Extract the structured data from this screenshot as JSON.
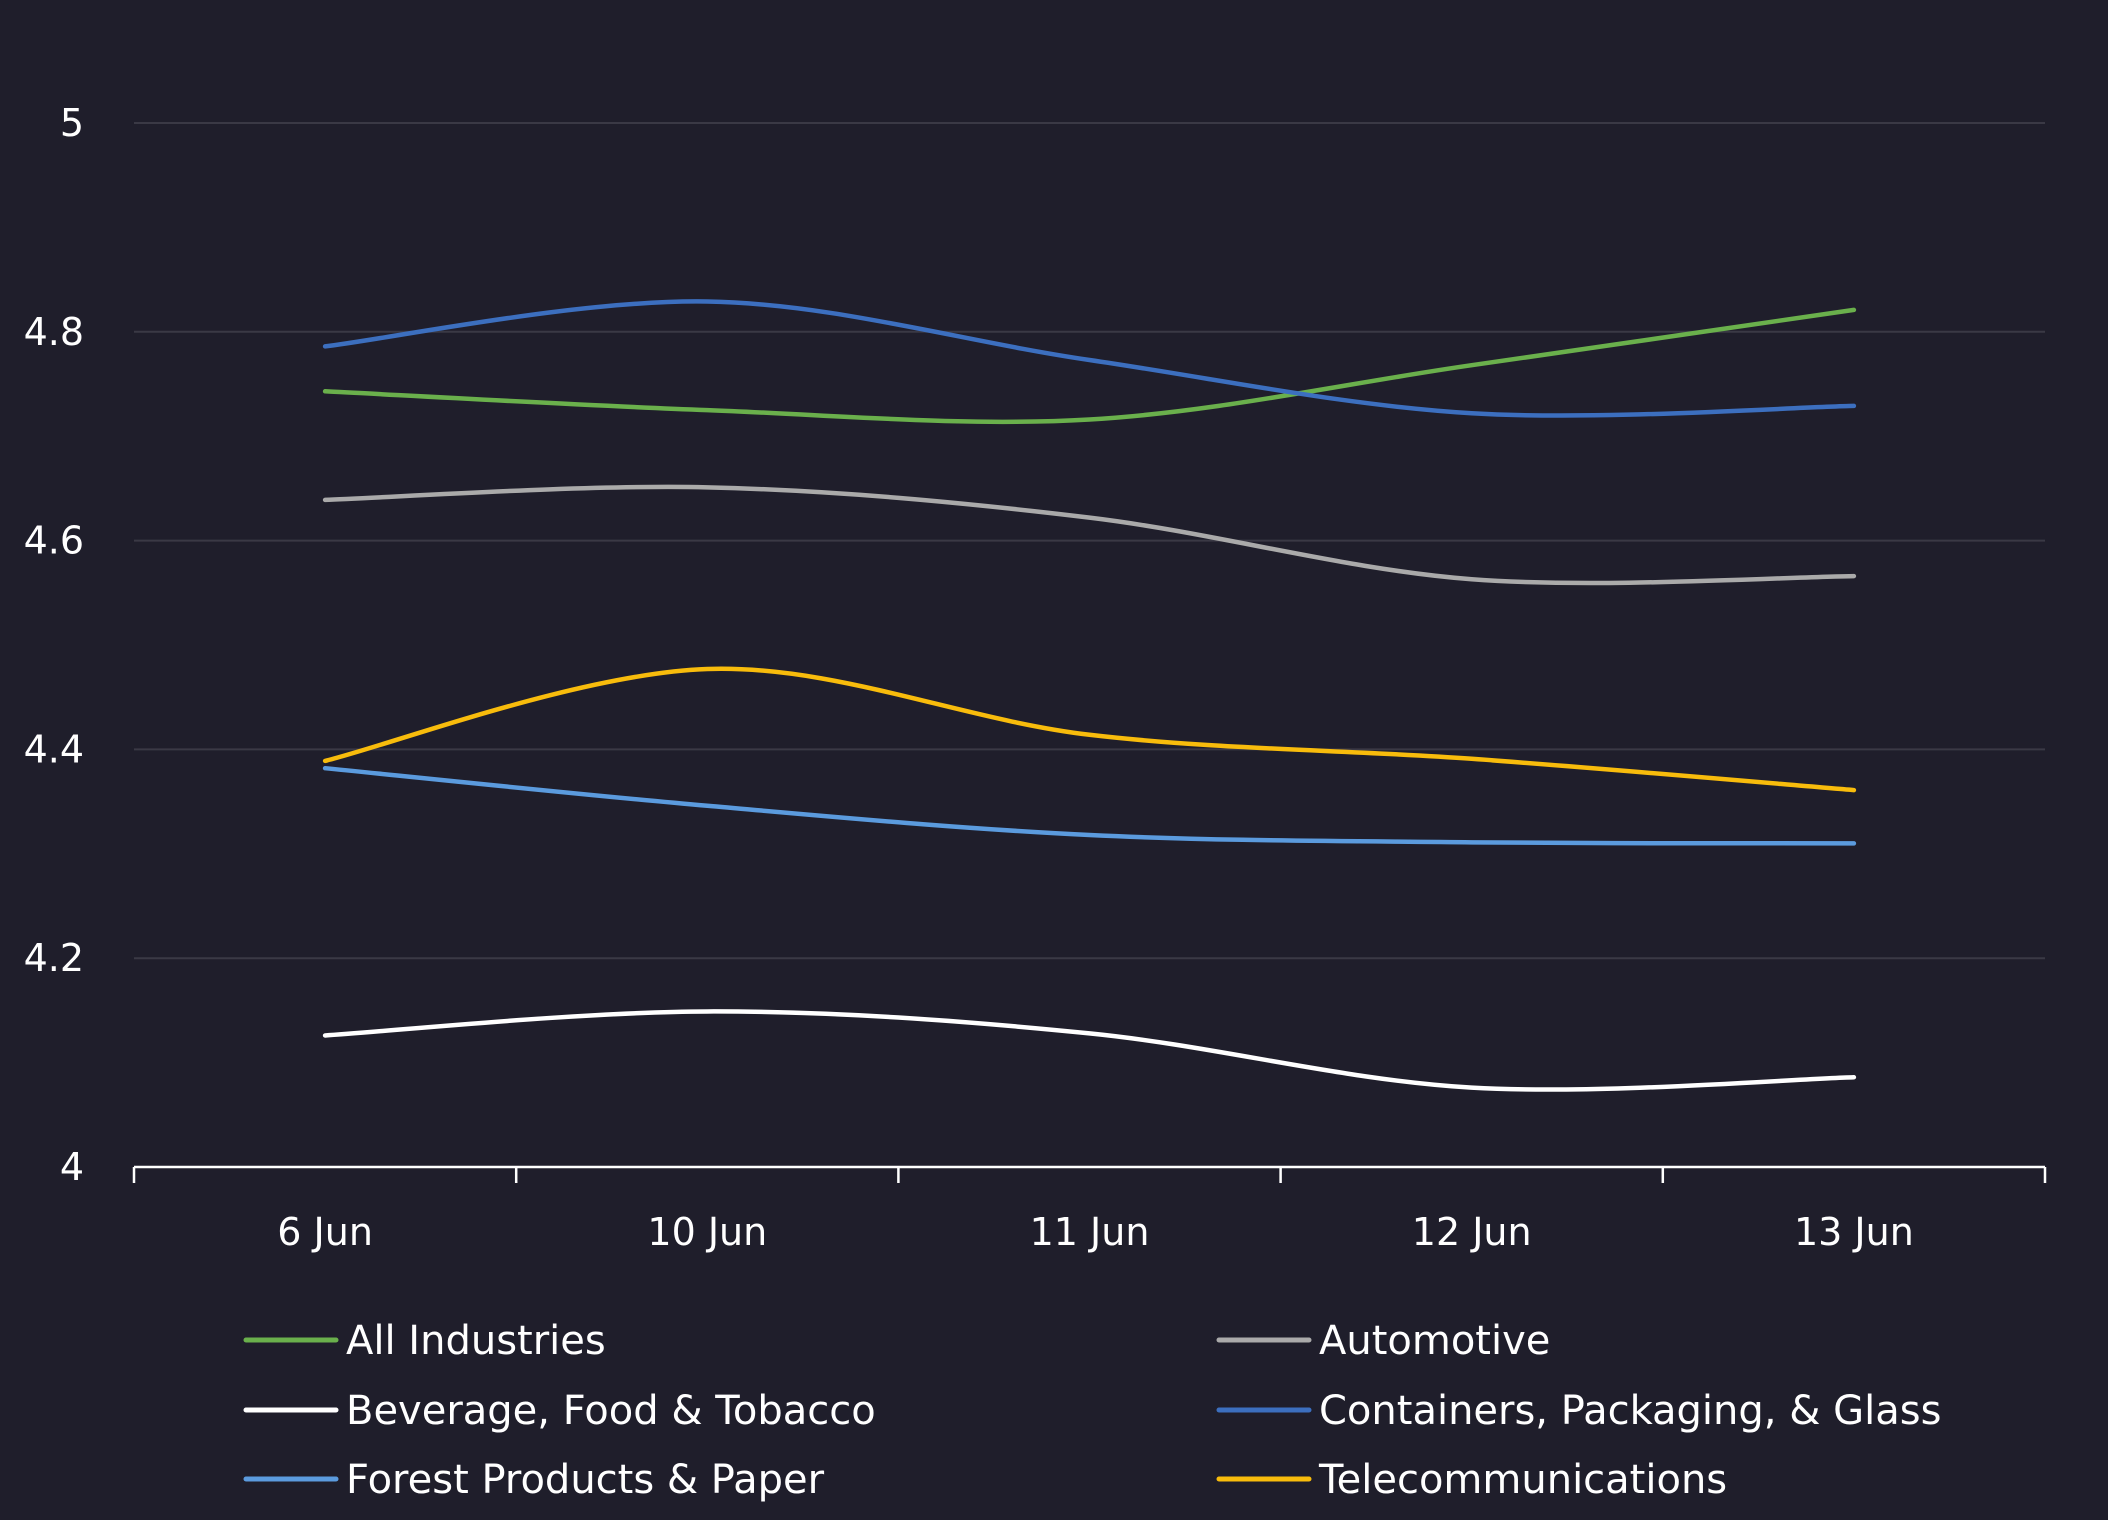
{
  "chart_data": {
    "type": "line",
    "title": "",
    "xlabel": "",
    "ylabel": "",
    "categories": [
      "6 Jun",
      "10 Jun",
      "11 Jun",
      "12 Jun",
      "13 Jun"
    ],
    "ylim": [
      4,
      5
    ],
    "yticks": [
      "4",
      "4.2",
      "4.4",
      "4.6",
      "4.8",
      "5"
    ],
    "ytick_values": [
      4,
      4.2,
      4.4,
      4.6,
      4.8,
      5
    ],
    "grid": true,
    "legend_position": "bottom",
    "series": [
      {
        "name": "All Industries",
        "color": "#6ab04c",
        "values": [
          4.743,
          4.725,
          4.716,
          4.768,
          4.821
        ]
      },
      {
        "name": "Automotive",
        "color": "#aaaaaa",
        "values": [
          4.639,
          4.651,
          4.622,
          4.563,
          4.566
        ]
      },
      {
        "name": "Beverage, Food & Tobacco",
        "color": "#ffffff",
        "values": [
          4.126,
          4.149,
          4.128,
          4.076,
          4.086
        ]
      },
      {
        "name": "Containers, Packaging, & Glass",
        "color": "#3c6fbf",
        "values": [
          4.786,
          4.829,
          4.773,
          4.722,
          4.729
        ]
      },
      {
        "name": "Forest Products & Paper",
        "color": "#5b9bde",
        "values": [
          4.382,
          4.346,
          4.318,
          4.311,
          4.31
        ]
      },
      {
        "name": "Telecommunications",
        "color": "#f8bc0c",
        "values": [
          4.389,
          4.477,
          4.414,
          4.391,
          4.361
        ]
      }
    ]
  }
}
